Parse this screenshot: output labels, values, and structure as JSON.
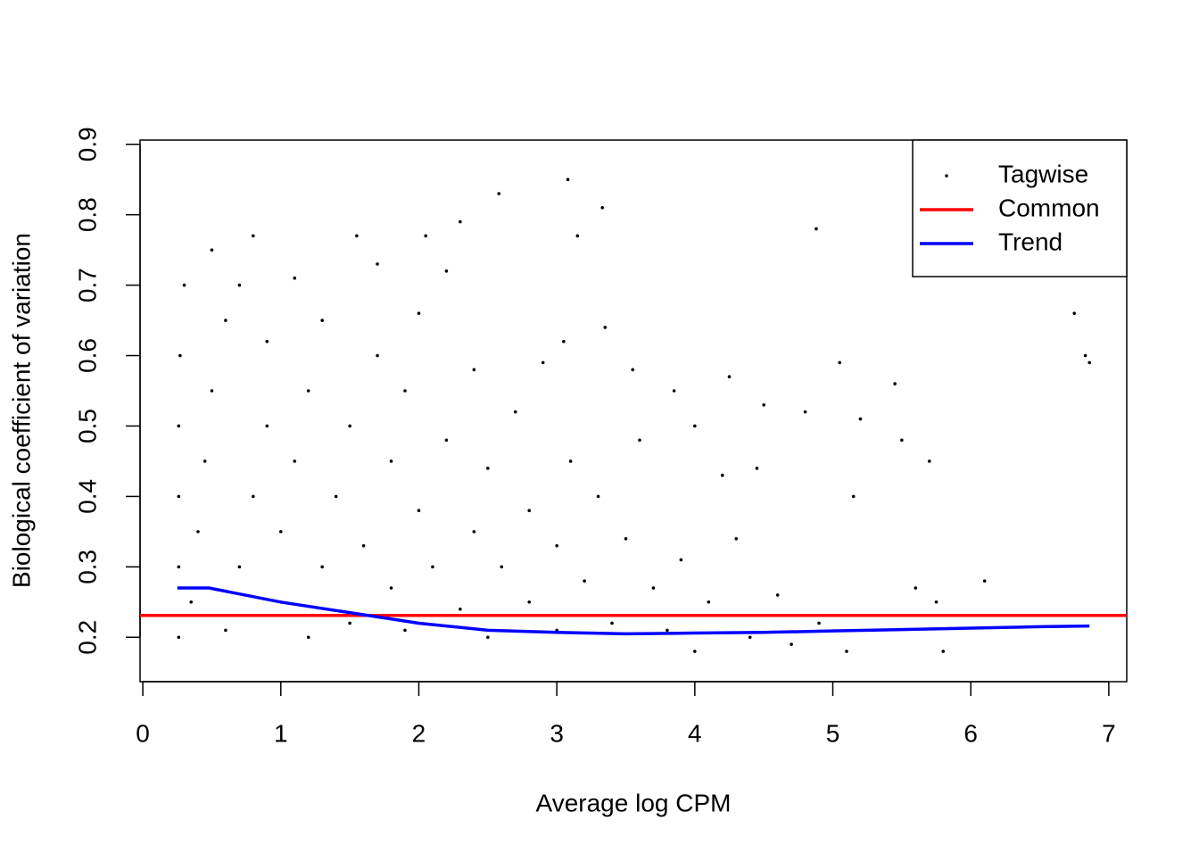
{
  "chart_data": {
    "type": "scatter",
    "x_label": "Average log CPM",
    "y_label": "Biological coefficient of variation",
    "xlim": [
      -0.02,
      7.13
    ],
    "ylim": [
      0.137,
      0.906
    ],
    "xticks": [
      0,
      1,
      2,
      3,
      4,
      5,
      6,
      7
    ],
    "yticks": [
      0.2,
      0.3,
      0.4,
      0.5,
      0.6,
      0.7,
      0.8,
      0.9
    ],
    "legend": "top-right",
    "series": [
      {
        "name": "Tagwise",
        "color": "#000000",
        "kind": "points",
        "x": [
          0.26,
          0.26,
          0.26,
          0.26,
          0.27,
          0.3,
          0.35,
          0.4,
          0.45,
          0.5,
          0.5,
          0.6,
          0.6,
          0.7,
          0.7,
          0.8,
          0.8,
          0.9,
          0.9,
          1.0,
          1.0,
          1.1,
          1.1,
          1.2,
          1.2,
          1.3,
          1.3,
          1.4,
          1.5,
          1.5,
          1.55,
          1.6,
          1.7,
          1.7,
          1.8,
          1.8,
          1.9,
          1.9,
          2.0,
          2.0,
          2.05,
          2.1,
          2.2,
          2.2,
          2.3,
          2.3,
          2.4,
          2.4,
          2.5,
          2.5,
          2.58,
          2.6,
          2.7,
          2.8,
          2.8,
          2.9,
          3.0,
          3.0,
          3.05,
          3.08,
          3.1,
          3.15,
          3.2,
          3.3,
          3.33,
          3.35,
          3.4,
          3.5,
          3.55,
          3.6,
          3.7,
          3.8,
          3.85,
          3.9,
          4.0,
          4.0,
          4.1,
          4.2,
          4.25,
          4.3,
          4.4,
          4.45,
          4.5,
          4.6,
          4.7,
          4.8,
          4.88,
          4.9,
          5.05,
          5.1,
          5.15,
          5.2,
          5.3,
          5.45,
          5.5,
          5.6,
          5.7,
          5.75,
          5.8,
          6.1,
          6.75,
          6.83,
          6.86
        ],
        "values": [
          0.2,
          0.3,
          0.4,
          0.5,
          0.6,
          0.7,
          0.25,
          0.35,
          0.45,
          0.55,
          0.75,
          0.65,
          0.21,
          0.3,
          0.7,
          0.4,
          0.77,
          0.5,
          0.62,
          0.25,
          0.35,
          0.45,
          0.71,
          0.2,
          0.55,
          0.3,
          0.65,
          0.4,
          0.22,
          0.5,
          0.77,
          0.33,
          0.6,
          0.73,
          0.27,
          0.45,
          0.21,
          0.55,
          0.38,
          0.66,
          0.77,
          0.3,
          0.48,
          0.72,
          0.24,
          0.79,
          0.35,
          0.58,
          0.2,
          0.44,
          0.83,
          0.3,
          0.52,
          0.25,
          0.38,
          0.59,
          0.21,
          0.33,
          0.62,
          0.85,
          0.45,
          0.77,
          0.28,
          0.4,
          0.81,
          0.64,
          0.22,
          0.34,
          0.58,
          0.48,
          0.27,
          0.21,
          0.55,
          0.31,
          0.18,
          0.5,
          0.25,
          0.43,
          0.57,
          0.34,
          0.2,
          0.44,
          0.53,
          0.26,
          0.19,
          0.52,
          0.78,
          0.22,
          0.59,
          0.18,
          0.4,
          0.51,
          0.21,
          0.56,
          0.48,
          0.27,
          0.45,
          0.25,
          0.18,
          0.28,
          0.66,
          0.6,
          0.59
        ]
      },
      {
        "name": "Common",
        "color": "#ff0000",
        "kind": "hline",
        "values": [
          0.231
        ]
      },
      {
        "name": "Trend",
        "color": "#0000ff",
        "kind": "line",
        "x": [
          0.25,
          0.48,
          1.0,
          1.5,
          2.0,
          2.5,
          3.0,
          3.5,
          4.0,
          4.5,
          5.0,
          5.5,
          6.0,
          6.5,
          6.86
        ],
        "values": [
          0.27,
          0.27,
          0.25,
          0.235,
          0.22,
          0.21,
          0.207,
          0.205,
          0.206,
          0.207,
          0.209,
          0.211,
          0.213,
          0.215,
          0.216
        ]
      }
    ]
  }
}
